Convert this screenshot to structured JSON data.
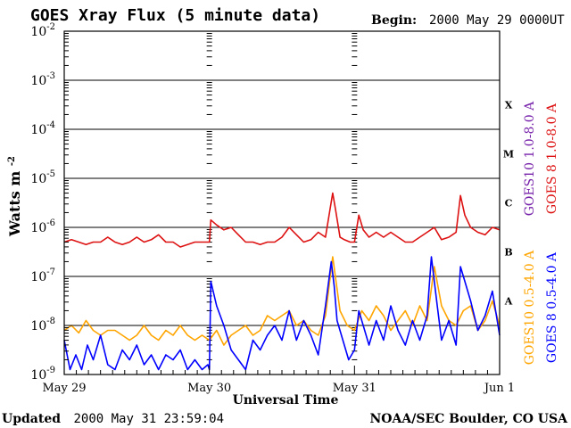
{
  "chart_data": {
    "type": "line",
    "title": "GOES Xray Flux (5 minute data)",
    "begin_label": "Begin:",
    "begin_value": "2000 May 29 0000UT",
    "xlabel": "Universal Time",
    "ylabel": "Watts m",
    "ylabel_exp": "-2",
    "yscale": "log",
    "ylim_exp": [
      -9,
      -2
    ],
    "y_tick_labels": [
      {
        "exp": -2,
        "base": "10",
        "power": "-2"
      },
      {
        "exp": -3,
        "base": "10",
        "power": "-3"
      },
      {
        "exp": -4,
        "base": "10",
        "power": "-4"
      },
      {
        "exp": -5,
        "base": "10",
        "power": "-5"
      },
      {
        "exp": -6,
        "base": "10",
        "power": "-6"
      },
      {
        "exp": -7,
        "base": "10",
        "power": "-7"
      },
      {
        "exp": -8,
        "base": "10",
        "power": "-8"
      },
      {
        "exp": -9,
        "base": "10",
        "power": "-9"
      }
    ],
    "x_range_days": [
      0,
      3
    ],
    "x_tick_labels": [
      {
        "day": 0,
        "label": "May 29"
      },
      {
        "day": 1,
        "label": "May 30"
      },
      {
        "day": 2,
        "label": "May 31"
      },
      {
        "day": 3,
        "label": "Jun 1"
      }
    ],
    "flare_classes": [
      {
        "label": "X",
        "exp": -3.5
      },
      {
        "label": "M",
        "exp": -4.5
      },
      {
        "label": "C",
        "exp": -5.5
      },
      {
        "label": "B",
        "exp": -6.5
      },
      {
        "label": "A",
        "exp": -7.5
      }
    ],
    "series": [
      {
        "name": "GOES10 1.0-8.0 A",
        "color": "#7722aa",
        "visible_in_plot": false,
        "x_day": [],
        "log10_flux": []
      },
      {
        "name": "GOES 8 1.0-8.0 A",
        "color": "#dd1111",
        "x_day": [
          0.0,
          0.05,
          0.1,
          0.15,
          0.2,
          0.25,
          0.3,
          0.35,
          0.4,
          0.45,
          0.5,
          0.55,
          0.6,
          0.65,
          0.7,
          0.75,
          0.8,
          0.85,
          0.9,
          0.95,
          0.99,
          1.0,
          1.01,
          1.05,
          1.1,
          1.15,
          1.2,
          1.25,
          1.3,
          1.35,
          1.4,
          1.45,
          1.5,
          1.55,
          1.6,
          1.65,
          1.7,
          1.75,
          1.8,
          1.85,
          1.87,
          1.9,
          1.93,
          1.97,
          2.0,
          2.03,
          2.06,
          2.1,
          2.15,
          2.2,
          2.25,
          2.3,
          2.35,
          2.4,
          2.45,
          2.5,
          2.55,
          2.6,
          2.65,
          2.7,
          2.73,
          2.76,
          2.8,
          2.85,
          2.9,
          2.95,
          3.0
        ],
        "log10_flux": [
          -6.3,
          -6.25,
          -6.3,
          -6.35,
          -6.3,
          -6.3,
          -6.2,
          -6.3,
          -6.35,
          -6.3,
          -6.2,
          -6.3,
          -6.25,
          -6.15,
          -6.3,
          -6.3,
          -6.4,
          -6.35,
          -6.3,
          -6.3,
          -6.3,
          -6.3,
          -5.85,
          -5.95,
          -6.05,
          -6.0,
          -6.15,
          -6.3,
          -6.3,
          -6.35,
          -6.3,
          -6.3,
          -6.2,
          -6.0,
          -6.15,
          -6.3,
          -6.25,
          -6.1,
          -6.2,
          -5.3,
          -5.65,
          -6.2,
          -6.25,
          -6.3,
          -6.3,
          -5.75,
          -6.05,
          -6.2,
          -6.1,
          -6.2,
          -6.1,
          -6.2,
          -6.3,
          -6.3,
          -6.2,
          -6.1,
          -6.0,
          -6.25,
          -6.2,
          -6.1,
          -5.35,
          -5.75,
          -6.0,
          -6.1,
          -6.15,
          -6.0,
          -6.05
        ]
      },
      {
        "name": "GOES10 0.5-4.0 A",
        "color": "#ffa500",
        "x_day": [
          0.0,
          0.05,
          0.1,
          0.15,
          0.2,
          0.25,
          0.3,
          0.35,
          0.4,
          0.45,
          0.5,
          0.55,
          0.6,
          0.65,
          0.7,
          0.75,
          0.8,
          0.85,
          0.9,
          0.95,
          1.0,
          1.05,
          1.1,
          1.15,
          1.2,
          1.25,
          1.3,
          1.35,
          1.4,
          1.45,
          1.5,
          1.55,
          1.6,
          1.65,
          1.7,
          1.75,
          1.8,
          1.85,
          1.9,
          1.95,
          2.0,
          2.05,
          2.1,
          2.15,
          2.2,
          2.25,
          2.3,
          2.35,
          2.4,
          2.45,
          2.5,
          2.55,
          2.6,
          2.65,
          2.7,
          2.75,
          2.8,
          2.85,
          2.9,
          2.95,
          3.0
        ],
        "log10_flux": [
          -8.1,
          -8.0,
          -8.15,
          -7.9,
          -8.1,
          -8.2,
          -8.1,
          -8.1,
          -8.2,
          -8.3,
          -8.2,
          -8.0,
          -8.2,
          -8.3,
          -8.1,
          -8.2,
          -8.0,
          -8.2,
          -8.3,
          -8.2,
          -8.3,
          -8.1,
          -8.4,
          -8.2,
          -8.1,
          -8.0,
          -8.2,
          -8.1,
          -7.8,
          -7.9,
          -7.8,
          -7.7,
          -8.0,
          -7.9,
          -8.1,
          -8.2,
          -7.8,
          -6.6,
          -7.7,
          -8.0,
          -8.1,
          -7.7,
          -7.9,
          -7.6,
          -7.8,
          -8.1,
          -7.9,
          -7.7,
          -8.0,
          -7.6,
          -7.9,
          -6.8,
          -7.6,
          -7.9,
          -8.0,
          -7.7,
          -7.6,
          -8.1,
          -7.9,
          -7.5,
          -8.0
        ]
      },
      {
        "name": "GOES 8 0.5-4.0 A",
        "color": "#0000ff",
        "x_day": [
          0.0,
          0.04,
          0.08,
          0.12,
          0.16,
          0.2,
          0.25,
          0.3,
          0.35,
          0.4,
          0.45,
          0.5,
          0.55,
          0.6,
          0.65,
          0.7,
          0.75,
          0.8,
          0.85,
          0.9,
          0.95,
          0.99,
          1.0,
          1.01,
          1.05,
          1.1,
          1.15,
          1.2,
          1.25,
          1.3,
          1.35,
          1.4,
          1.45,
          1.5,
          1.55,
          1.6,
          1.65,
          1.7,
          1.75,
          1.8,
          1.84,
          1.86,
          1.88,
          1.92,
          1.96,
          2.0,
          2.03,
          2.06,
          2.1,
          2.15,
          2.2,
          2.25,
          2.3,
          2.35,
          2.4,
          2.45,
          2.5,
          2.53,
          2.57,
          2.6,
          2.65,
          2.7,
          2.73,
          2.76,
          2.8,
          2.85,
          2.9,
          2.95,
          3.0
        ],
        "log10_flux": [
          -8.3,
          -8.9,
          -8.6,
          -8.9,
          -8.4,
          -8.7,
          -8.2,
          -8.8,
          -8.9,
          -8.5,
          -8.7,
          -8.4,
          -8.8,
          -8.6,
          -8.9,
          -8.6,
          -8.7,
          -8.5,
          -8.9,
          -8.7,
          -8.9,
          -8.8,
          -8.9,
          -7.1,
          -7.6,
          -8.0,
          -8.5,
          -8.7,
          -8.9,
          -8.3,
          -8.5,
          -8.2,
          -8.0,
          -8.3,
          -7.7,
          -8.3,
          -7.9,
          -8.2,
          -8.6,
          -7.6,
          -6.7,
          -7.2,
          -7.9,
          -8.3,
          -8.7,
          -8.5,
          -7.7,
          -8.0,
          -8.4,
          -7.9,
          -8.3,
          -7.6,
          -8.1,
          -8.4,
          -7.9,
          -8.3,
          -7.8,
          -6.6,
          -7.6,
          -8.3,
          -7.9,
          -8.4,
          -6.8,
          -7.1,
          -7.5,
          -8.1,
          -7.8,
          -7.3,
          -8.2
        ]
      }
    ],
    "legend_placement": "right, vertical"
  },
  "footer": {
    "updated_label": "Updated",
    "updated_value": "2000 May 31 23:59:04",
    "source": "NOAA/SEC Boulder, CO USA"
  }
}
